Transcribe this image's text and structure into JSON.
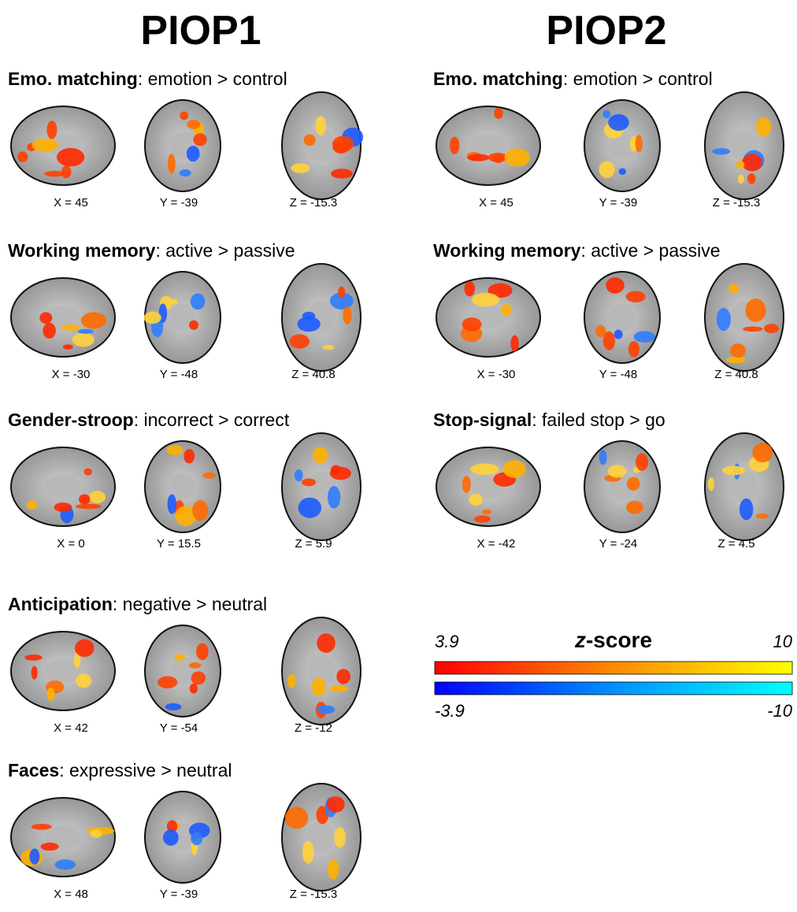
{
  "columns": [
    {
      "title": "PIOP1",
      "panels": [
        {
          "task": "Emo. matching",
          "contrast": ": emotion > control",
          "slices": [
            "X = 45",
            "Y = -39",
            "Z = -15.3"
          ]
        },
        {
          "task": "Working memory",
          "contrast": ": active > passive",
          "slices": [
            "X = -30",
            "Y = -48",
            "Z = 40.8"
          ]
        },
        {
          "task": "Gender-stroop",
          "contrast": ": incorrect > correct",
          "slices": [
            "X = 0",
            "Y = 15.5",
            "Z = 5.9"
          ]
        },
        {
          "task": "Anticipation",
          "contrast": ": negative > neutral",
          "slices": [
            "X = 42",
            "Y = -54",
            "Z = -12"
          ]
        },
        {
          "task": "Faces",
          "contrast": ": expressive > neutral",
          "slices": [
            "X = 48",
            "Y = -39",
            "Z = -15.3"
          ]
        }
      ]
    },
    {
      "title": "PIOP2",
      "panels": [
        {
          "task": "Emo. matching",
          "contrast": ": emotion > control",
          "slices": [
            "X = 45",
            "Y = -39",
            "Z = -15.3"
          ]
        },
        {
          "task": "Working memory",
          "contrast": ": active > passive",
          "slices": [
            "X = -30",
            "Y = -48",
            "Z = 40.8"
          ]
        },
        {
          "task": "Stop-signal",
          "contrast": ": failed stop > go",
          "slices": [
            "X = -42",
            "Y = -24",
            "Z = 4.5"
          ]
        }
      ]
    }
  ],
  "colorbar": {
    "title_italic": "z",
    "title": "-score",
    "pos_min": "3.9",
    "pos_max": "10",
    "neg_min": "-3.9",
    "neg_max": "-10"
  }
}
